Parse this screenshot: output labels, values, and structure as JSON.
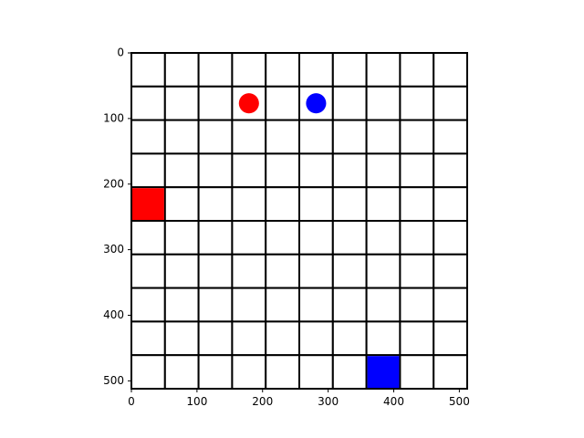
{
  "board": {
    "grid_cells": 10,
    "extent": [
      0,
      512
    ],
    "cell_size_units": 51.2,
    "background": "#ffffff",
    "line_color": "#000000"
  },
  "axes": {
    "x_ticks": [
      "0",
      "100",
      "200",
      "300",
      "400",
      "500"
    ],
    "y_ticks": [
      "0",
      "100",
      "200",
      "300",
      "400",
      "500"
    ]
  },
  "pieces": [
    {
      "id": "red-circle",
      "shape": "circle",
      "color": "#ff0000",
      "col": 3,
      "row": 1
    },
    {
      "id": "blue-circle",
      "shape": "circle",
      "color": "#0000ff",
      "col": 5,
      "row": 1
    },
    {
      "id": "red-square",
      "shape": "square",
      "color": "#ff0000",
      "col": 0,
      "row": 4
    },
    {
      "id": "blue-square",
      "shape": "square",
      "color": "#0000ff",
      "col": 7,
      "row": 9
    }
  ]
}
